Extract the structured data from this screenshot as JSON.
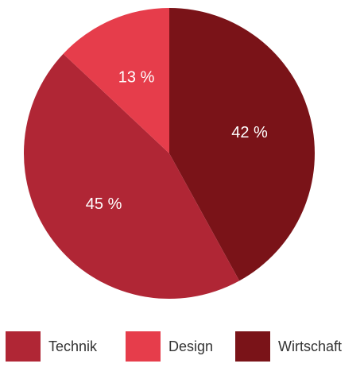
{
  "chart_data": {
    "type": "pie",
    "slices": [
      {
        "label": "Wirtschaft",
        "value": 42,
        "display": "42 %",
        "color": "#7a1318"
      },
      {
        "label": "Technik",
        "value": 45,
        "display": "45 %",
        "color": "#b02635"
      },
      {
        "label": "Design",
        "value": 13,
        "display": "13 %",
        "color": "#e63d4b"
      }
    ],
    "legend": {
      "placement": "bottom",
      "items": [
        {
          "label": "Technik",
          "color": "#b02635"
        },
        {
          "label": "Design",
          "color": "#e63d4b"
        },
        {
          "label": "Wirtschaft",
          "color": "#7a1318"
        }
      ]
    },
    "start_angle": "top",
    "direction": "clockwise"
  }
}
